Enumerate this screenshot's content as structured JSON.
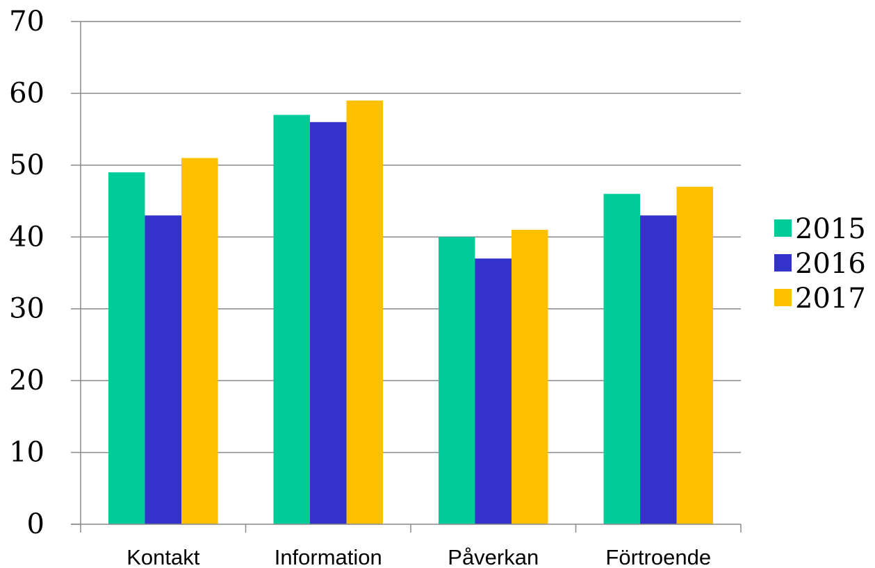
{
  "chart_data": {
    "type": "bar",
    "categories": [
      "Kontakt",
      "Information",
      "Påverkan",
      "Förtroende"
    ],
    "series": [
      {
        "name": "2015",
        "values": [
          49,
          57,
          40,
          46
        ],
        "color": "#00CC99"
      },
      {
        "name": "2016",
        "values": [
          43,
          56,
          37,
          43
        ],
        "color": "#3333CC"
      },
      {
        "name": "2017",
        "values": [
          51,
          59,
          41,
          47
        ],
        "color": "#FFC000"
      }
    ],
    "ylim": [
      0,
      70
    ],
    "yticks": [
      0,
      10,
      20,
      30,
      40,
      50,
      60,
      70
    ],
    "grid": true,
    "legend_position": "right",
    "gridline_color": "#898989",
    "axis_color": "#898989"
  }
}
